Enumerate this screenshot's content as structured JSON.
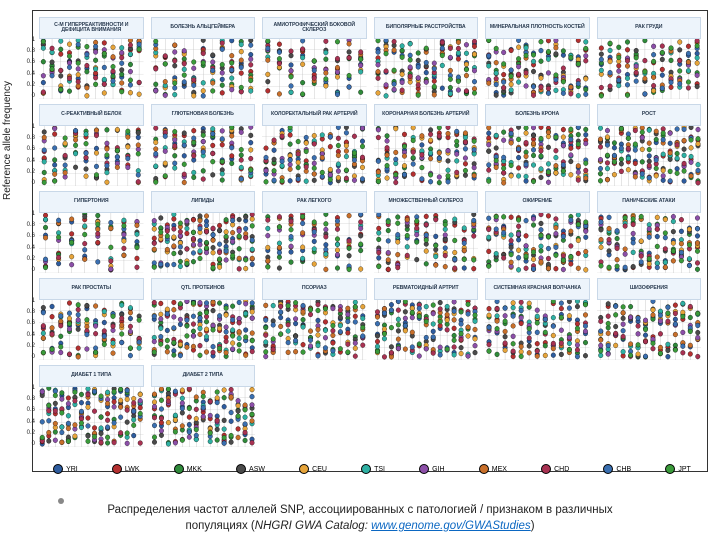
{
  "axisLabel": "Reference allele frequency",
  "yticks": [
    "1",
    "0.8",
    "0.6",
    "0.4",
    "0.2",
    "0"
  ],
  "captionLine1": "Распределения частот аллелей SNP, ассоциированных с патологией / признаком в различных",
  "captionLine2a": "популяциях (",
  "captionSource": "NHGRI GWA Catalog: ",
  "captionLink": "www.genome.gov/GWAStudies",
  "captionLine2b": ")",
  "populations": [
    {
      "code": "YRI",
      "color": "#2e5c9e"
    },
    {
      "code": "LWK",
      "color": "#b43030"
    },
    {
      "code": "MKK",
      "color": "#2f8a3a"
    },
    {
      "code": "ASW",
      "color": "#4a4a4a"
    },
    {
      "code": "CEU",
      "color": "#e6a43a"
    },
    {
      "code": "TSI",
      "color": "#2fb0a3"
    },
    {
      "code": "GIH",
      "color": "#8c4fa8"
    },
    {
      "code": "MEX",
      "color": "#c86f2a"
    },
    {
      "code": "CHD",
      "color": "#a83252"
    },
    {
      "code": "CHB",
      "color": "#3a6fb0"
    },
    {
      "code": "JPT",
      "color": "#3a9a3a"
    }
  ],
  "panels": [
    {
      "title": "С-М ГИПЕРРЕАКТИВНОСТИ И ДЕФИЦИТА ВНИМАНИЯ",
      "snps": 12
    },
    {
      "title": "БОЛЕЗНЬ АЛЬЦГЕЙМЕРА",
      "snps": 11
    },
    {
      "title": "АМИОТРОФИЧЕСКИЙ БОКОВОЙ СКЛЕРОЗ",
      "snps": 9
    },
    {
      "title": "БИПОЛЯРНЫЕ РАССТРОЙСТВА",
      "snps": 13
    },
    {
      "title": "МИНЕРАЛЬНАЯ ПЛОТНОСТЬ КОСТЕЙ",
      "snps": 14
    },
    {
      "title": "РАК ГРУДИ",
      "snps": 12
    },
    {
      "title": "С-РЕАКТИВНЫЙ БЕЛОК",
      "snps": 10
    },
    {
      "title": "ГЛЮТЕНОВАЯ БОЛЕЗНЬ",
      "snps": 11
    },
    {
      "title": "КОЛОРЕКТАЛЬНЫЙ РАК АРТЕРИЙ",
      "snps": 13
    },
    {
      "title": "КОРОНАРНАЯ БОЛЕЗНЬ АРТЕРИЙ",
      "snps": 12
    },
    {
      "title": "БОЛЕЗНЬ КРОНА",
      "snps": 14
    },
    {
      "title": "РОСТ",
      "snps": 15
    },
    {
      "title": "ГИПЕРТОНИЯ",
      "snps": 8
    },
    {
      "title": "ЛИПИДЫ",
      "snps": 16
    },
    {
      "title": "РАК ЛЕГКОГО",
      "snps": 9
    },
    {
      "title": "МНОЖЕСТВЕННЫЙ СКЛЕРОЗ",
      "snps": 11
    },
    {
      "title": "ОЖИРЕНИЕ",
      "snps": 14
    },
    {
      "title": "ПАНИЧЕСКИЕ АТАКИ",
      "snps": 13
    },
    {
      "title": "РАК ПРОСТАТЫ",
      "snps": 12
    },
    {
      "title": "QTL ПРОТЕИНОВ",
      "snps": 16
    },
    {
      "title": "ПСОРИАЗ",
      "snps": 14
    },
    {
      "title": "РЕВМАТОИДНЫЙ АРТРИТ",
      "snps": 15
    },
    {
      "title": "СИСТЕМНАЯ КРАСНАЯ ВОЛЧАНКА",
      "snps": 13
    },
    {
      "title": "ШИЗОФРЕНИЯ",
      "snps": 14
    },
    {
      "title": "ДИАБЕТ 1 ТИПА",
      "snps": 16
    },
    {
      "title": "ДИАБЕТ 2 ТИПА",
      "snps": 15
    }
  ],
  "plotStyle": {
    "gridColor": "#c8c8c8",
    "stemColor": "#bbbbbb",
    "dotR": 2.2,
    "dotStroke": "#000",
    "dotStrokeW": 0.3
  }
}
